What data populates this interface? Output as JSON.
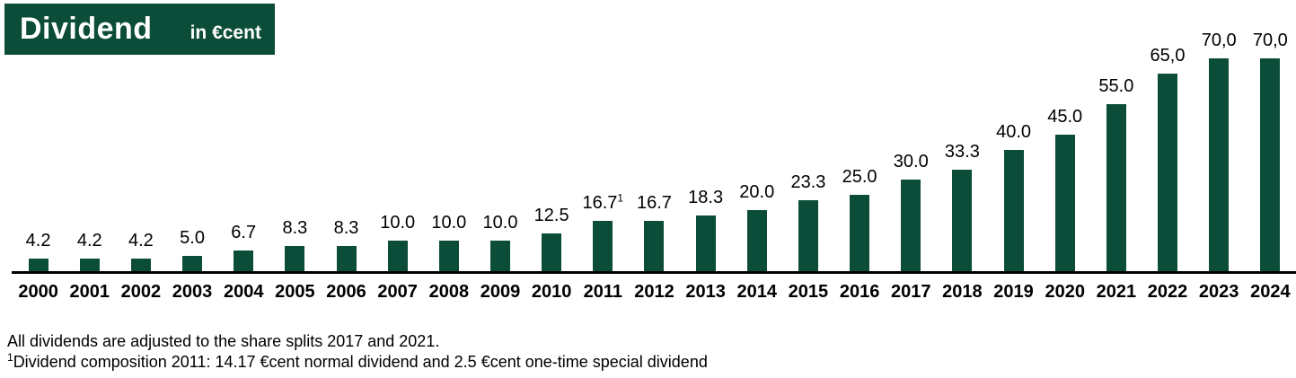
{
  "chart_data": {
    "type": "bar",
    "title": "Dividend",
    "unit_label": "in €cent",
    "categories": [
      "2000",
      "2001",
      "2002",
      "2003",
      "2004",
      "2005",
      "2006",
      "2007",
      "2008",
      "2009",
      "2010",
      "2011",
      "2012",
      "2013",
      "2014",
      "2015",
      "2016",
      "2017",
      "2018",
      "2019",
      "2020",
      "2021",
      "2022",
      "2023",
      "2024"
    ],
    "values": [
      4.2,
      4.2,
      4.2,
      5.0,
      6.7,
      8.3,
      8.3,
      10.0,
      10.0,
      10.0,
      12.5,
      16.7,
      16.7,
      18.3,
      20.0,
      23.3,
      25.0,
      30.0,
      33.3,
      40.0,
      45.0,
      55.0,
      65.0,
      70.0,
      70.0
    ],
    "value_labels": [
      "4.2",
      "4.2",
      "4.2",
      "5.0",
      "6.7",
      "8.3",
      "8.3",
      "10.0",
      "10.0",
      "10.0",
      "12.5",
      "16.7",
      "16.7",
      "18.3",
      "20.0",
      "23.3",
      "25.0",
      "30.0",
      "33.3",
      "40.0",
      "45.0",
      "55.0",
      "65,0",
      "70,0",
      "70,0"
    ],
    "value_label_sups": [
      "",
      "",
      "",
      "",
      "",
      "",
      "",
      "",
      "",
      "",
      "",
      "1",
      "",
      "",
      "",
      "",
      "",
      "",
      "",
      "",
      "",
      "",
      "",
      "",
      ""
    ],
    "xlabel": "",
    "ylabel": "",
    "ylim": [
      0,
      70
    ],
    "grid": false,
    "legend_position": "none",
    "bar_color": "#0b4d38",
    "axis_color": "#000000"
  },
  "footnotes": {
    "line1": "All dividends are adjusted to the share splits 2017 and 2021.",
    "line2_sup": "1",
    "line2_text": "Dividend composition 2011: 14.17 €cent normal dividend and 2.5 €cent one-time special dividend"
  },
  "colors": {
    "brand_green": "#0b4d38",
    "text_black": "#000000"
  }
}
